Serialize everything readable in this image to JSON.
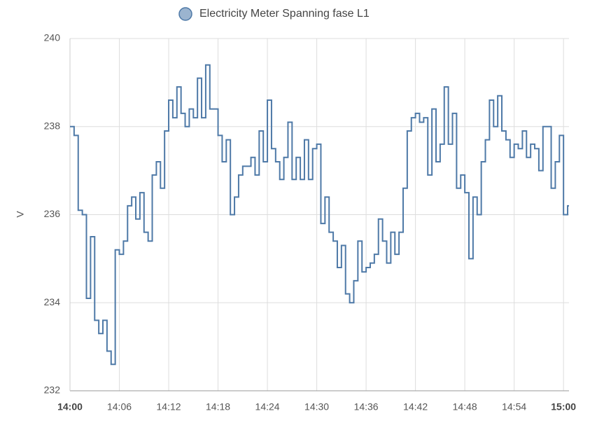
{
  "chart_data": {
    "type": "line",
    "step": "after",
    "y_label": "V",
    "x": [
      "14:00:00",
      "14:00:30",
      "14:01:00",
      "14:01:30",
      "14:02:00",
      "14:02:30",
      "14:03:00",
      "14:03:30",
      "14:04:00",
      "14:04:30",
      "14:05:00",
      "14:05:30",
      "14:06:00",
      "14:06:30",
      "14:07:00",
      "14:07:30",
      "14:08:00",
      "14:08:30",
      "14:09:00",
      "14:09:30",
      "14:10:00",
      "14:10:30",
      "14:11:00",
      "14:11:30",
      "14:12:00",
      "14:12:30",
      "14:13:00",
      "14:13:30",
      "14:14:00",
      "14:14:30",
      "14:15:00",
      "14:15:30",
      "14:16:00",
      "14:16:30",
      "14:17:00",
      "14:17:30",
      "14:18:00",
      "14:18:30",
      "14:19:00",
      "14:19:30",
      "14:20:00",
      "14:20:30",
      "14:21:00",
      "14:21:30",
      "14:22:00",
      "14:22:30",
      "14:23:00",
      "14:23:30",
      "14:24:00",
      "14:24:30",
      "14:25:00",
      "14:25:30",
      "14:26:00",
      "14:26:30",
      "14:27:00",
      "14:27:30",
      "14:28:00",
      "14:28:30",
      "14:29:00",
      "14:29:30",
      "14:30:00",
      "14:30:30",
      "14:31:00",
      "14:31:30",
      "14:32:00",
      "14:32:30",
      "14:33:00",
      "14:33:30",
      "14:34:00",
      "14:34:30",
      "14:35:00",
      "14:35:30",
      "14:36:00",
      "14:36:30",
      "14:37:00",
      "14:37:30",
      "14:38:00",
      "14:38:30",
      "14:39:00",
      "14:39:30",
      "14:40:00",
      "14:40:30",
      "14:41:00",
      "14:41:30",
      "14:42:00",
      "14:42:30",
      "14:43:00",
      "14:43:30",
      "14:44:00",
      "14:44:30",
      "14:45:00",
      "14:45:30",
      "14:46:00",
      "14:46:30",
      "14:47:00",
      "14:47:30",
      "14:48:00",
      "14:48:30",
      "14:49:00",
      "14:49:30",
      "14:50:00",
      "14:50:30",
      "14:51:00",
      "14:51:30",
      "14:52:00",
      "14:52:30",
      "14:53:00",
      "14:53:30",
      "14:54:00",
      "14:54:30",
      "14:55:00",
      "14:55:30",
      "14:56:00",
      "14:56:30",
      "14:57:00",
      "14:57:30",
      "14:58:00",
      "14:58:30",
      "14:59:00",
      "14:59:30",
      "15:00:00",
      "15:00:30"
    ],
    "series": [
      {
        "name": "Electricity Meter Spanning fase L1",
        "color": "#4e79a7",
        "fill": "#9bb4cf",
        "values": [
          238.0,
          237.8,
          236.1,
          236.0,
          234.1,
          235.5,
          233.6,
          233.3,
          233.6,
          232.9,
          232.6,
          235.2,
          235.1,
          235.4,
          236.2,
          236.4,
          235.9,
          236.5,
          235.6,
          235.4,
          236.9,
          237.2,
          236.6,
          237.9,
          238.6,
          238.2,
          238.9,
          238.3,
          238.0,
          238.4,
          238.2,
          239.1,
          238.2,
          239.4,
          238.4,
          238.4,
          237.8,
          237.2,
          237.7,
          236.0,
          236.4,
          236.9,
          237.1,
          237.1,
          237.3,
          236.9,
          237.9,
          237.2,
          238.6,
          237.5,
          237.2,
          236.8,
          237.3,
          238.1,
          236.8,
          237.3,
          236.8,
          237.7,
          236.8,
          237.5,
          237.6,
          235.8,
          236.4,
          235.6,
          235.4,
          234.8,
          235.3,
          234.2,
          234.0,
          234.5,
          235.4,
          234.7,
          234.8,
          234.9,
          235.1,
          235.9,
          235.4,
          234.9,
          235.6,
          235.1,
          235.6,
          236.6,
          237.9,
          238.2,
          238.3,
          238.1,
          238.2,
          236.9,
          238.4,
          237.2,
          237.6,
          238.9,
          237.6,
          238.3,
          236.6,
          236.9,
          236.5,
          235.0,
          236.4,
          236.0,
          237.2,
          237.7,
          238.6,
          238.0,
          238.7,
          237.9,
          237.7,
          237.3,
          237.6,
          237.5,
          237.9,
          237.3,
          237.6,
          237.5,
          237.0,
          238.0,
          238.0,
          236.6,
          237.2,
          237.8,
          236.0,
          236.2
        ]
      }
    ],
    "xlim": [
      "14:00:00",
      "15:00:40"
    ],
    "xticks": [
      "14:00",
      "14:06",
      "14:12",
      "14:18",
      "14:24",
      "14:30",
      "14:36",
      "14:42",
      "14:48",
      "14:54",
      "15:00"
    ],
    "ylim": [
      232,
      240
    ],
    "yticks": [
      232,
      234,
      236,
      238,
      240
    ],
    "grid": true
  }
}
